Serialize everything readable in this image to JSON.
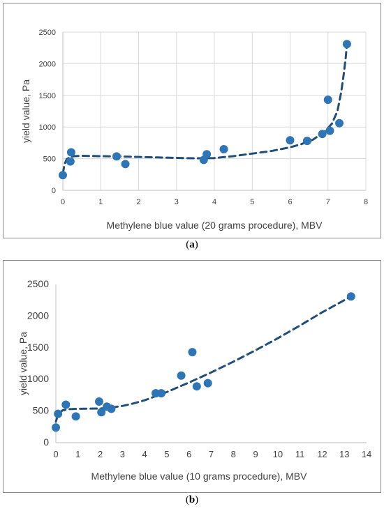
{
  "chart_data": [
    {
      "id": "a",
      "type": "scatter",
      "caption_letter": "a",
      "xlabel": "Methylene blue value (20 grams procedure), MBV",
      "ylabel": "yield value, Pa",
      "xlim": [
        0,
        8
      ],
      "ylim": [
        0,
        2500
      ],
      "xticks": [
        0,
        1,
        2,
        3,
        4,
        5,
        6,
        7,
        8
      ],
      "yticks": [
        0,
        500,
        1000,
        1500,
        2000,
        2500
      ],
      "grid": true,
      "series": [
        {
          "kind": "points",
          "color": "#2e75b6",
          "x": [
            0.0,
            0.2,
            0.22,
            1.42,
            1.65,
            3.72,
            3.8,
            4.25,
            6.0,
            6.45,
            6.85,
            7.0,
            7.05,
            7.3,
            7.5
          ],
          "y": [
            240,
            455,
            600,
            535,
            415,
            480,
            570,
            650,
            790,
            780,
            890,
            1430,
            940,
            1060,
            2310
          ]
        },
        {
          "kind": "trendline",
          "style": "dashed",
          "color": "#1f4e79",
          "x": [
            0.0,
            0.05,
            0.1,
            0.2,
            0.3,
            0.5,
            1.0,
            1.5,
            2.0,
            2.5,
            3.0,
            3.5,
            4.0,
            4.5,
            5.0,
            5.5,
            6.0,
            6.3,
            6.6,
            6.9,
            7.1,
            7.25,
            7.35,
            7.42,
            7.47,
            7.5
          ],
          "y": [
            270,
            420,
            490,
            530,
            540,
            545,
            540,
            535,
            528,
            520,
            512,
            505,
            510,
            540,
            580,
            620,
            680,
            730,
            800,
            920,
            1050,
            1250,
            1550,
            1850,
            2100,
            2310
          ]
        }
      ]
    },
    {
      "id": "b",
      "type": "scatter",
      "caption_letter": "b",
      "xlabel": "Methylene blue value (10 grams procedure), MBV",
      "ylabel": "yield value, Pa",
      "xlim": [
        0,
        14
      ],
      "ylim": [
        0,
        2500
      ],
      "xticks": [
        0,
        1,
        2,
        3,
        4,
        5,
        6,
        7,
        8,
        9,
        10,
        11,
        12,
        13,
        14
      ],
      "yticks": [
        0,
        500,
        1000,
        1500,
        2000,
        2500
      ],
      "grid": false,
      "series": [
        {
          "kind": "points",
          "color": "#2e75b6",
          "x": [
            0.0,
            0.1,
            0.45,
            0.9,
            1.95,
            2.05,
            2.3,
            2.5,
            4.5,
            4.75,
            5.65,
            6.15,
            6.35,
            6.85,
            13.3
          ],
          "y": [
            240,
            455,
            600,
            415,
            650,
            480,
            570,
            535,
            780,
            780,
            1060,
            1430,
            890,
            940,
            2310
          ]
        },
        {
          "kind": "trendline",
          "style": "dashed",
          "color": "#1f4e79",
          "x": [
            0.0,
            0.1,
            0.3,
            0.6,
            1.0,
            2.0,
            2.5,
            3.0,
            3.5,
            4.0,
            5.0,
            6.0,
            7.0,
            8.0,
            9.0,
            10.0,
            11.0,
            12.0,
            13.3
          ],
          "y": [
            330,
            450,
            510,
            530,
            535,
            540,
            555,
            580,
            620,
            670,
            800,
            950,
            1110,
            1280,
            1460,
            1650,
            1850,
            2060,
            2310
          ]
        }
      ]
    }
  ]
}
